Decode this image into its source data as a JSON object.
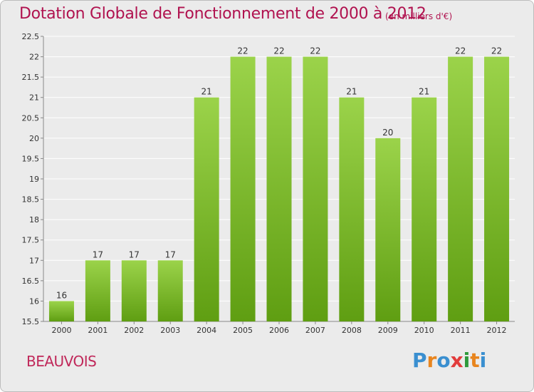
{
  "title": "Dotation Globale de Fonctionnement de 2000 à 2012",
  "subtitle": "(en milliers d'€)",
  "commune": "BEAUVOIS",
  "logo": {
    "letters": [
      "P",
      "r",
      "o",
      "x",
      "i",
      "t",
      "i"
    ],
    "colors": [
      "#3a8fd0",
      "#e8851f",
      "#3a8fd0",
      "#e23c3c",
      "#2f9a3c",
      "#e8851f",
      "#3a8fd0"
    ]
  },
  "chart_data": {
    "type": "bar",
    "categories": [
      "2000",
      "2001",
      "2002",
      "2003",
      "2004",
      "2005",
      "2006",
      "2007",
      "2008",
      "2009",
      "2010",
      "2011",
      "2012"
    ],
    "values": [
      16,
      17,
      17,
      17,
      21,
      22,
      22,
      22,
      21,
      20,
      21,
      22,
      22
    ],
    "title": "Dotation Globale de Fonctionnement de 2000 à 2012",
    "xlabel": "",
    "ylabel": "",
    "ylim": [
      15.5,
      22.5
    ],
    "yticks": [
      15.5,
      16,
      16.5,
      17,
      17.5,
      18,
      18.5,
      19,
      19.5,
      20,
      20.5,
      21,
      21.5,
      22,
      22.5
    ],
    "grid": true,
    "bar_color": "#7cc224"
  }
}
